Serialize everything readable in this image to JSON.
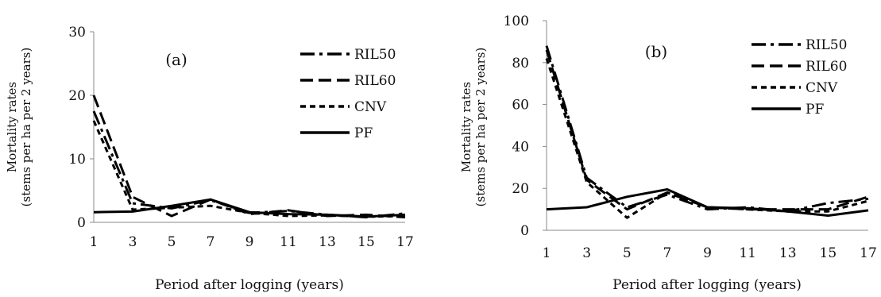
{
  "chart_data": [
    {
      "type": "line",
      "panel_label": "(a)",
      "xlabel": "Period after logging (years)",
      "ylabel": [
        "Mortality rates",
        "(stems per  ha per 2 years)"
      ],
      "x": [
        1,
        3,
        5,
        7,
        9,
        11,
        13,
        15,
        17
      ],
      "x_ticks": [
        "1",
        "3",
        "5",
        "7",
        "9",
        "11",
        "13",
        "15",
        "17"
      ],
      "ylim": [
        0,
        30
      ],
      "y_ticks": [
        0,
        10,
        20,
        30
      ],
      "grid": false,
      "legend_position": "top-right",
      "series": [
        {
          "name": "RIL50",
          "dash": "dash-dot",
          "values": [
            17.5,
            3.0,
            2.2,
            3.5,
            1.5,
            1.8,
            1.2,
            0.8,
            1.4
          ]
        },
        {
          "name": "RIL60",
          "dash": "long-dash",
          "values": [
            20.0,
            4.0,
            1.0,
            3.6,
            1.3,
            1.9,
            1.0,
            1.2,
            0.8
          ]
        },
        {
          "name": "CNV",
          "dash": "short-dash",
          "values": [
            16.0,
            2.0,
            2.3,
            2.6,
            1.5,
            1.0,
            1.1,
            0.9,
            1.0
          ]
        },
        {
          "name": "PF",
          "dash": "solid",
          "values": [
            1.6,
            1.7,
            2.6,
            3.6,
            1.6,
            1.3,
            1.2,
            0.9,
            1.2
          ]
        }
      ]
    },
    {
      "type": "line",
      "panel_label": "(b)",
      "xlabel": "Period after logging (years)",
      "ylabel": [
        "Mortality rates",
        "(stems per ha per 2 years)"
      ],
      "x": [
        1,
        3,
        5,
        7,
        9,
        11,
        13,
        15,
        17
      ],
      "x_ticks": [
        "1",
        "3",
        "5",
        "7",
        "9",
        "11",
        "13",
        "15",
        "17"
      ],
      "ylim": [
        0,
        100
      ],
      "y_ticks": [
        0,
        20,
        40,
        60,
        80,
        100
      ],
      "grid": false,
      "legend_position": "top-right",
      "series": [
        {
          "name": "RIL50",
          "dash": "dash-dot",
          "values": [
            88,
            25,
            11,
            17,
            10,
            11,
            9,
            13,
            15
          ]
        },
        {
          "name": "RIL60",
          "dash": "long-dash",
          "values": [
            86,
            24,
            10,
            18,
            11,
            10,
            10,
            10,
            16
          ]
        },
        {
          "name": "CNV",
          "dash": "short-dash",
          "values": [
            82,
            23,
            6,
            18,
            11,
            10,
            9,
            9,
            14
          ]
        },
        {
          "name": "PF",
          "dash": "solid",
          "values": [
            10,
            11,
            16,
            19.5,
            11,
            10.5,
            9,
            7,
            9.5
          ]
        }
      ]
    }
  ]
}
